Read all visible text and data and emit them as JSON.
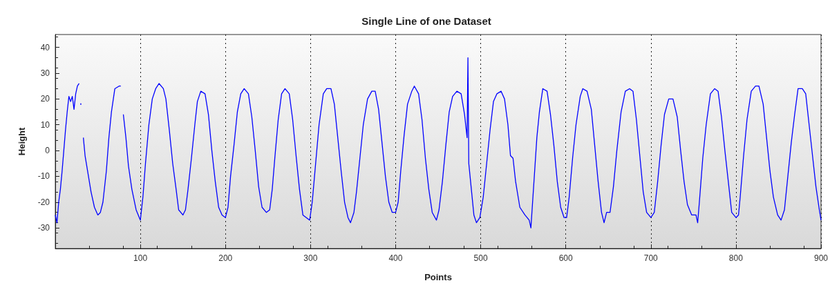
{
  "chart_data": {
    "type": "line",
    "title": "Single Line of one Dataset",
    "xlabel": "Points",
    "ylabel": "Height",
    "xlim": [
      0,
      900
    ],
    "ylim": [
      -38,
      45
    ],
    "xticks": [
      100,
      200,
      300,
      400,
      500,
      600,
      700,
      800,
      900
    ],
    "yticks": [
      -30,
      -20,
      -10,
      0,
      10,
      20,
      30,
      40
    ],
    "grid": "x",
    "marker": "none",
    "line_style": "solid",
    "series": [
      {
        "color": "#0000ff",
        "x": [
          0,
          2,
          4,
          6,
          8,
          10,
          12,
          14,
          16,
          18,
          20,
          22,
          24,
          26,
          28,
          29,
          30,
          31,
          32,
          33,
          35,
          38,
          42,
          46,
          50,
          53,
          56,
          60,
          63,
          66,
          70,
          75,
          77,
          78,
          79,
          80,
          83,
          86,
          90,
          95,
          100,
          103,
          106,
          110,
          114,
          118,
          122,
          127,
          130,
          134,
          138,
          142,
          145,
          150,
          153,
          156,
          160,
          164,
          167,
          171,
          176,
          180,
          184,
          188,
          192,
          196,
          200,
          203,
          206,
          210,
          214,
          218,
          222,
          227,
          231,
          235,
          239,
          243,
          248,
          252,
          255,
          258,
          262,
          266,
          270,
          275,
          279,
          283,
          287,
          291,
          295,
          299,
          302,
          306,
          310,
          315,
          319,
          324,
          328,
          332,
          336,
          340,
          344,
          347,
          351,
          354,
          358,
          362,
          367,
          372,
          376,
          380,
          384,
          388,
          392,
          396,
          400,
          403,
          406,
          410,
          414,
          419,
          422,
          427,
          431,
          435,
          439,
          443,
          448,
          451,
          455,
          459,
          463,
          467,
          472,
          477,
          481,
          484,
          485,
          486,
          489,
          492,
          495,
          499,
          503,
          507,
          511,
          515,
          519,
          524,
          528,
          532,
          535,
          538,
          541,
          546,
          552,
          557,
          559,
          560,
          563,
          566,
          569,
          573,
          578,
          582,
          586,
          590,
          594,
          598,
          601,
          604,
          608,
          612,
          617,
          620,
          625,
          630,
          634,
          638,
          642,
          645,
          648,
          652,
          656,
          660,
          665,
          670,
          675,
          679,
          683,
          687,
          691,
          695,
          700,
          704,
          708,
          712,
          716,
          721,
          726,
          731,
          735,
          739,
          743,
          748,
          753,
          755,
          757,
          761,
          765,
          770,
          775,
          779,
          783,
          787,
          791,
          795,
          800,
          803,
          805,
          809,
          813,
          818,
          823,
          827,
          832,
          836,
          840,
          844,
          849,
          853,
          857,
          861,
          865,
          869,
          873,
          878,
          882,
          886,
          890,
          894,
          898,
          900
        ],
        "values": [
          -25,
          -28,
          -20,
          -15,
          -8,
          0,
          8,
          15,
          21,
          19,
          21,
          16,
          22,
          25,
          26,
          null,
          18,
          null,
          null,
          5,
          -2,
          -8,
          -16,
          -22,
          -25,
          -24,
          -20,
          -8,
          5,
          15,
          24,
          25,
          25,
          null,
          null,
          14,
          5,
          -6,
          -15,
          -23,
          -27,
          -18,
          -5,
          10,
          20,
          24,
          26,
          24,
          20,
          8,
          -5,
          -15,
          -23,
          -25,
          -23,
          -15,
          -3,
          10,
          19,
          23,
          22,
          14,
          0,
          -12,
          -22,
          -25,
          -26,
          -22,
          -10,
          2,
          15,
          22,
          24,
          22,
          13,
          0,
          -14,
          -22,
          -24,
          -23,
          -15,
          -3,
          12,
          22,
          24,
          22,
          12,
          -2,
          -15,
          -25,
          -26,
          -27,
          -20,
          -5,
          10,
          22,
          24,
          24,
          18,
          5,
          -8,
          -20,
          -26,
          -28,
          -24,
          -16,
          -3,
          10,
          20,
          23,
          23,
          16,
          3,
          -10,
          -20,
          -24,
          -24,
          -20,
          -8,
          6,
          18,
          23,
          25,
          22,
          12,
          -3,
          -15,
          -24,
          -27,
          -23,
          -12,
          2,
          15,
          21,
          23,
          22,
          14,
          5,
          36,
          -5,
          -15,
          -25,
          -28,
          -26,
          -18,
          -5,
          8,
          19,
          22,
          23,
          20,
          10,
          -2,
          -3,
          -12,
          -22,
          -25,
          -27,
          -30,
          -25,
          -10,
          5,
          15,
          24,
          23,
          14,
          2,
          -12,
          -22,
          -26,
          -26,
          -18,
          -3,
          10,
          21,
          24,
          23,
          16,
          2,
          -12,
          -24,
          -28,
          -24,
          -24,
          -14,
          0,
          15,
          23,
          24,
          23,
          12,
          -2,
          -16,
          -24,
          -26,
          -24,
          -12,
          2,
          14,
          20,
          20,
          13,
          0,
          -12,
          -21,
          -25,
          -25,
          -28,
          -20,
          -3,
          10,
          22,
          24,
          23,
          13,
          0,
          -12,
          -24,
          -26,
          -25,
          -18,
          -2,
          12,
          23,
          25,
          25,
          18,
          5,
          -8,
          -18,
          -25,
          -27,
          -23,
          -10,
          3,
          14,
          24,
          24,
          22,
          10,
          -2,
          -14,
          -23,
          -27
        ]
      }
    ]
  }
}
